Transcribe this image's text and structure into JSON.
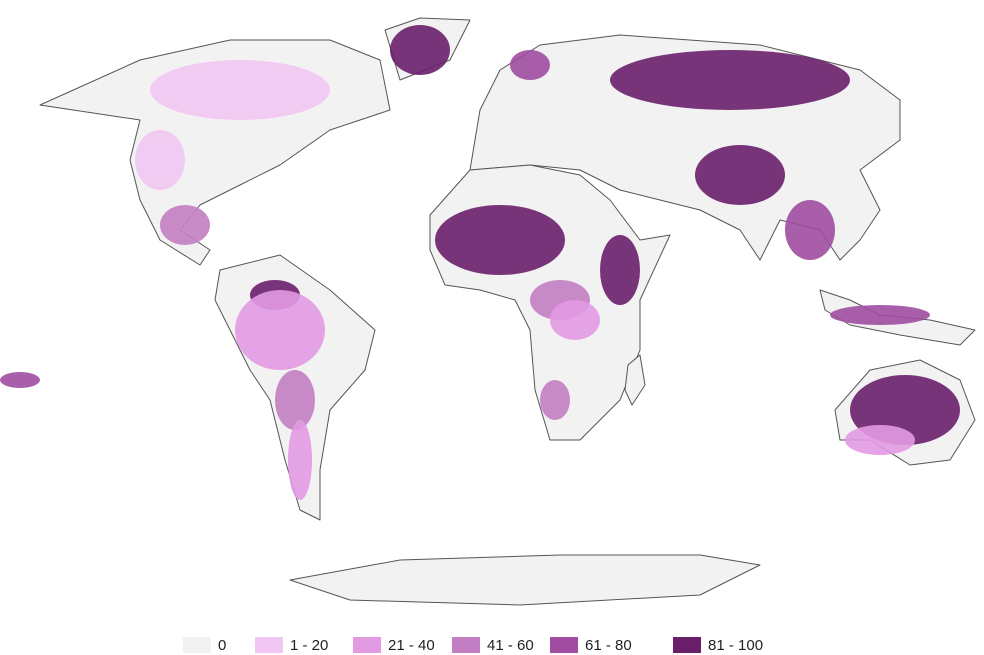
{
  "legend": {
    "items": [
      {
        "label": "0",
        "color": "#f2f2f2"
      },
      {
        "label": "1 - 20",
        "color": "#f2c6f2"
      },
      {
        "label": "21 - 40",
        "color": "#e29ae2"
      },
      {
        "label": "41 - 60",
        "color": "#c27ec2"
      },
      {
        "label": "61 - 80",
        "color": "#a04ca0"
      },
      {
        "label": "81 - 100",
        "color": "#6a1f6a"
      }
    ]
  }
}
